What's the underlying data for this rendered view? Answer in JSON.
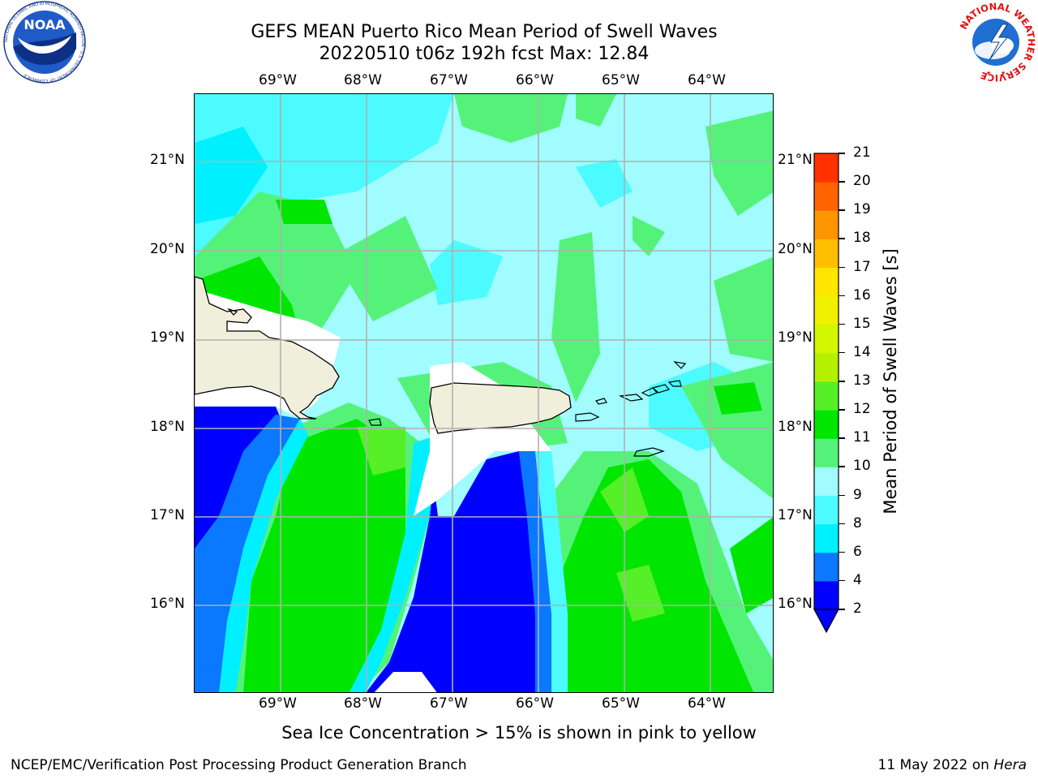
{
  "title": {
    "line1": "GEFS MEAN Puerto Rico Mean Period of Swell Waves",
    "line2": "20220510 t06z 192h fcst   Max: 12.84"
  },
  "map": {
    "lon_labels": [
      "69°W",
      "68°W",
      "67°W",
      "66°W",
      "65°W",
      "64°W"
    ],
    "lat_labels": [
      "21°N",
      "20°N",
      "19°N",
      "18°N",
      "17°N",
      "16°N"
    ],
    "lon_range": [
      -70.0,
      -63.25
    ],
    "lat_range": [
      15.0,
      21.75
    ],
    "grid": true,
    "land_color": "#efefdc",
    "mask_color": "#ffffff"
  },
  "colorbar": {
    "title": "Mean Period of Swell Waves [s]",
    "levels": [
      "2",
      "4",
      "6",
      "8",
      "9",
      "10",
      "11",
      "12",
      "13",
      "14",
      "15",
      "16",
      "17",
      "18",
      "19",
      "20",
      "21"
    ],
    "colors": [
      "#0000ff",
      "#0a78ff",
      "#00f0ff",
      "#4cfbff",
      "#a0fcff",
      "#55f27a",
      "#00e600",
      "#55f028",
      "#b4f000",
      "#d2f500",
      "#f0f000",
      "#ffe600",
      "#ffbe00",
      "#ff9600",
      "#ff6400",
      "#ff3200",
      "#ff0000"
    ],
    "under_color": "#0000ff"
  },
  "logos": {
    "noaa_text": "NOAA",
    "noaa_ring": "NATIONAL OCEANIC AND ATMOSPHERIC ADMINISTRATION · U.S. DEPARTMENT OF COMMERCE",
    "nws_ring": "NATIONAL WEATHER SERVICE"
  },
  "caption": "Sea Ice Concentration > 15% is shown in pink to yellow",
  "credits": {
    "left": "NCEP/EMC/Verification Post Processing Product Generation Branch",
    "right_date": "11 May 2022 on ",
    "right_host": "Hera"
  }
}
